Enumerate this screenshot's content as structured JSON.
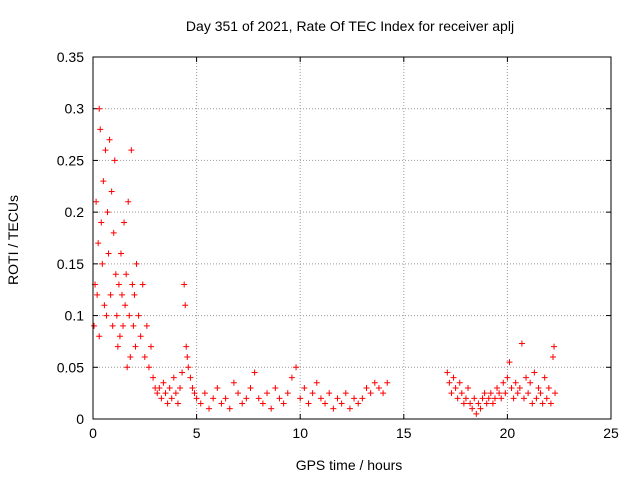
{
  "chart_data": {
    "type": "scatter",
    "title": "Day 351 of 2021, Rate Of TEC Index for receiver aplj",
    "xlabel": "GPS time / hours",
    "ylabel": "ROTI / TECUs",
    "xlim": [
      0,
      25
    ],
    "ylim": [
      0,
      0.35
    ],
    "xticks": [
      0,
      5,
      10,
      15,
      20,
      25
    ],
    "yticks": [
      0,
      0.05,
      0.1,
      0.15,
      0.2,
      0.25,
      0.3,
      0.35
    ],
    "xtick_labels": [
      "0",
      "5",
      "10",
      "15",
      "20",
      "25"
    ],
    "ytick_labels": [
      "0",
      "0.05",
      "0.1",
      "0.15",
      "0.2",
      "0.25",
      "0.3",
      "0.35"
    ],
    "grid": true,
    "marker": "+",
    "color": "#ff0000",
    "series": [
      {
        "name": "ROTI",
        "points": [
          [
            0.05,
            0.09
          ],
          [
            0.1,
            0.13
          ],
          [
            0.15,
            0.21
          ],
          [
            0.2,
            0.12
          ],
          [
            0.25,
            0.17
          ],
          [
            0.3,
            0.08
          ],
          [
            0.3,
            0.3
          ],
          [
            0.35,
            0.28
          ],
          [
            0.4,
            0.19
          ],
          [
            0.45,
            0.15
          ],
          [
            0.5,
            0.23
          ],
          [
            0.55,
            0.11
          ],
          [
            0.6,
            0.26
          ],
          [
            0.65,
            0.1
          ],
          [
            0.7,
            0.2
          ],
          [
            0.75,
            0.16
          ],
          [
            0.8,
            0.27
          ],
          [
            0.85,
            0.12
          ],
          [
            0.9,
            0.22
          ],
          [
            0.95,
            0.09
          ],
          [
            1.0,
            0.18
          ],
          [
            1.05,
            0.25
          ],
          [
            1.1,
            0.14
          ],
          [
            1.15,
            0.1
          ],
          [
            1.2,
            0.07
          ],
          [
            1.25,
            0.13
          ],
          [
            1.3,
            0.08
          ],
          [
            1.35,
            0.16
          ],
          [
            1.4,
            0.12
          ],
          [
            1.45,
            0.09
          ],
          [
            1.5,
            0.19
          ],
          [
            1.55,
            0.11
          ],
          [
            1.6,
            0.14
          ],
          [
            1.65,
            0.05
          ],
          [
            1.7,
            0.21
          ],
          [
            1.75,
            0.1
          ],
          [
            1.8,
            0.06
          ],
          [
            1.85,
            0.26
          ],
          [
            1.9,
            0.13
          ],
          [
            1.95,
            0.09
          ],
          [
            2.0,
            0.12
          ],
          [
            2.05,
            0.07
          ],
          [
            2.1,
            0.15
          ],
          [
            2.2,
            0.1
          ],
          [
            2.3,
            0.08
          ],
          [
            2.4,
            0.13
          ],
          [
            2.5,
            0.06
          ],
          [
            2.6,
            0.09
          ],
          [
            2.7,
            0.05
          ],
          [
            2.8,
            0.07
          ],
          [
            2.9,
            0.04
          ],
          [
            3.0,
            0.03
          ],
          [
            3.1,
            0.025
          ],
          [
            3.2,
            0.03
          ],
          [
            3.3,
            0.02
          ],
          [
            3.4,
            0.035
          ],
          [
            3.5,
            0.025
          ],
          [
            3.6,
            0.015
          ],
          [
            3.7,
            0.03
          ],
          [
            3.8,
            0.02
          ],
          [
            3.9,
            0.04
          ],
          [
            4.0,
            0.025
          ],
          [
            4.1,
            0.015
          ],
          [
            4.2,
            0.03
          ],
          [
            4.3,
            0.045
          ],
          [
            4.4,
            0.13
          ],
          [
            4.45,
            0.11
          ],
          [
            4.5,
            0.07
          ],
          [
            4.55,
            0.06
          ],
          [
            4.6,
            0.05
          ],
          [
            4.7,
            0.04
          ],
          [
            4.8,
            0.03
          ],
          [
            4.9,
            0.025
          ],
          [
            5.0,
            0.02
          ],
          [
            5.2,
            0.015
          ],
          [
            5.4,
            0.025
          ],
          [
            5.6,
            0.01
          ],
          [
            5.8,
            0.02
          ],
          [
            6.0,
            0.03
          ],
          [
            6.2,
            0.015
          ],
          [
            6.4,
            0.02
          ],
          [
            6.6,
            0.01
          ],
          [
            6.8,
            0.035
          ],
          [
            7.0,
            0.025
          ],
          [
            7.2,
            0.015
          ],
          [
            7.4,
            0.02
          ],
          [
            7.6,
            0.03
          ],
          [
            7.8,
            0.045
          ],
          [
            8.0,
            0.02
          ],
          [
            8.2,
            0.015
          ],
          [
            8.4,
            0.025
          ],
          [
            8.6,
            0.01
          ],
          [
            8.8,
            0.03
          ],
          [
            9.0,
            0.02
          ],
          [
            9.2,
            0.015
          ],
          [
            9.4,
            0.025
          ],
          [
            9.6,
            0.04
          ],
          [
            9.8,
            0.05
          ],
          [
            10.0,
            0.02
          ],
          [
            10.2,
            0.03
          ],
          [
            10.4,
            0.015
          ],
          [
            10.6,
            0.025
          ],
          [
            10.8,
            0.035
          ],
          [
            11.0,
            0.02
          ],
          [
            11.2,
            0.015
          ],
          [
            11.4,
            0.025
          ],
          [
            11.6,
            0.01
          ],
          [
            11.8,
            0.02
          ],
          [
            12.0,
            0.015
          ],
          [
            12.2,
            0.025
          ],
          [
            12.4,
            0.01
          ],
          [
            12.6,
            0.02
          ],
          [
            12.8,
            0.015
          ],
          [
            13.0,
            0.02
          ],
          [
            13.2,
            0.03
          ],
          [
            13.4,
            0.025
          ],
          [
            13.6,
            0.035
          ],
          [
            13.8,
            0.03
          ],
          [
            14.0,
            0.025
          ],
          [
            14.2,
            0.035
          ],
          [
            17.1,
            0.045
          ],
          [
            17.2,
            0.035
          ],
          [
            17.3,
            0.025
          ],
          [
            17.4,
            0.04
          ],
          [
            17.5,
            0.03
          ],
          [
            17.6,
            0.02
          ],
          [
            17.7,
            0.035
          ],
          [
            17.8,
            0.025
          ],
          [
            17.9,
            0.015
          ],
          [
            18.0,
            0.02
          ],
          [
            18.1,
            0.03
          ],
          [
            18.2,
            0.015
          ],
          [
            18.3,
            0.01
          ],
          [
            18.4,
            0.02
          ],
          [
            18.5,
            0.005
          ],
          [
            18.6,
            0.015
          ],
          [
            18.7,
            0.01
          ],
          [
            18.8,
            0.02
          ],
          [
            18.9,
            0.025
          ],
          [
            19.0,
            0.015
          ],
          [
            19.1,
            0.02
          ],
          [
            19.2,
            0.025
          ],
          [
            19.3,
            0.015
          ],
          [
            19.4,
            0.02
          ],
          [
            19.5,
            0.03
          ],
          [
            19.6,
            0.025
          ],
          [
            19.7,
            0.02
          ],
          [
            19.8,
            0.035
          ],
          [
            19.9,
            0.025
          ],
          [
            20.0,
            0.04
          ],
          [
            20.1,
            0.055
          ],
          [
            20.2,
            0.03
          ],
          [
            20.3,
            0.02
          ],
          [
            20.4,
            0.035
          ],
          [
            20.5,
            0.025
          ],
          [
            20.6,
            0.03
          ],
          [
            20.7,
            0.073
          ],
          [
            20.8,
            0.02
          ],
          [
            20.9,
            0.04
          ],
          [
            21.0,
            0.025
          ],
          [
            21.1,
            0.035
          ],
          [
            21.2,
            0.015
          ],
          [
            21.3,
            0.045
          ],
          [
            21.4,
            0.02
          ],
          [
            21.5,
            0.03
          ],
          [
            21.6,
            0.025
          ],
          [
            21.7,
            0.015
          ],
          [
            21.8,
            0.04
          ],
          [
            21.9,
            0.02
          ],
          [
            22.0,
            0.03
          ],
          [
            22.1,
            0.015
          ],
          [
            22.2,
            0.06
          ],
          [
            22.25,
            0.07
          ],
          [
            22.3,
            0.025
          ]
        ]
      }
    ]
  }
}
